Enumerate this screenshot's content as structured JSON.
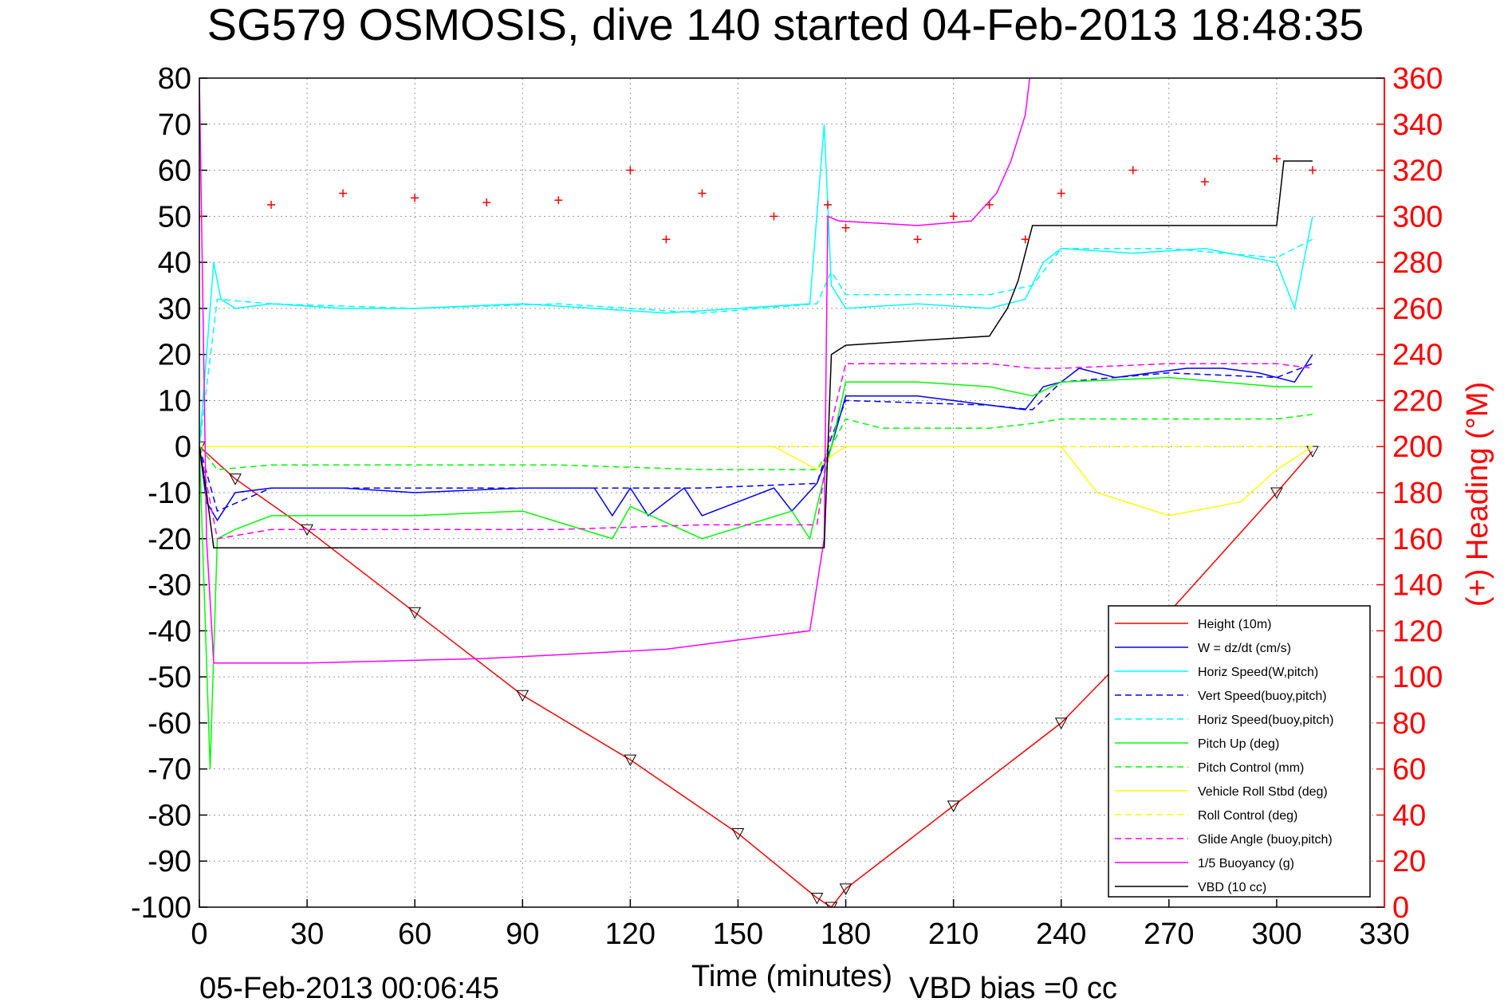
{
  "chart_data": {
    "type": "line",
    "title": "SG579 OSMOSIS, dive 140 started 04-Feb-2013 18:48:35",
    "xlabel": "Time (minutes)",
    "ylabel": "",
    "y2label": "(+) Heading (°M)",
    "footer_date": "05-Feb-2013 00:06:45",
    "footer_vbd": "VBD bias =0 cc",
    "xlim": [
      0,
      330
    ],
    "ylim": [
      -100,
      80
    ],
    "y2lim": [
      0,
      360
    ],
    "grid": true,
    "legend_position": "bottom-right",
    "xticks": [
      "0",
      "30",
      "60",
      "90",
      "120",
      "150",
      "180",
      "210",
      "240",
      "270",
      "300",
      "330"
    ],
    "yticks": [
      "80",
      "70",
      "60",
      "50",
      "40",
      "30",
      "20",
      "10",
      "0",
      "-10",
      "-20",
      "-30",
      "-40",
      "-50",
      "-60",
      "-70",
      "-80",
      "-90",
      "-100"
    ],
    "y2ticks": [
      "360",
      "340",
      "320",
      "300",
      "280",
      "260",
      "240",
      "220",
      "200",
      "180",
      "160",
      "140",
      "120",
      "100",
      "80",
      "60",
      "40",
      "20",
      "0"
    ],
    "y2_color": "#ff0000",
    "series": [
      {
        "name": "Height (10m)",
        "color": "#ff0000",
        "style": "solid",
        "x": [
          0,
          10,
          30,
          60,
          90,
          120,
          150,
          172,
          176,
          180,
          210,
          240,
          270,
          300,
          310
        ],
        "y": [
          0,
          -7,
          -18,
          -36,
          -54,
          -68,
          -84,
          -98,
          -100,
          -96,
          -78,
          -60,
          -36,
          -10,
          -1
        ]
      },
      {
        "name": "W = dz/dt (cm/s)",
        "color": "#0000ff",
        "style": "solid",
        "x": [
          0,
          2,
          5,
          10,
          20,
          40,
          60,
          90,
          110,
          115,
          120,
          125,
          135,
          140,
          160,
          165,
          172,
          176,
          180,
          200,
          220,
          230,
          235,
          240,
          245,
          255,
          265,
          275,
          285,
          295,
          305,
          310
        ],
        "y": [
          0,
          -12,
          -16,
          -10,
          -9,
          -9,
          -10,
          -9,
          -9,
          -15,
          -9,
          -15,
          -9,
          -15,
          -9,
          -14,
          -8,
          0,
          11,
          11,
          9,
          8,
          13,
          14,
          17,
          15,
          16,
          17,
          17,
          16,
          14,
          20
        ]
      },
      {
        "name": "Horiz Speed(W,pitch)",
        "color": "#00ffff",
        "style": "solid",
        "x": [
          0,
          2,
          4,
          6,
          10,
          20,
          40,
          60,
          90,
          110,
          130,
          150,
          170,
          174,
          176,
          180,
          200,
          220,
          230,
          235,
          240,
          260,
          280,
          300,
          305,
          310
        ],
        "y": [
          0,
          20,
          40,
          32,
          30,
          31,
          30,
          30,
          31,
          30,
          29,
          30,
          31,
          70,
          35,
          30,
          31,
          30,
          32,
          40,
          43,
          42,
          43,
          40,
          30,
          50
        ]
      },
      {
        "name": "Vert Speed(buoy,pitch)",
        "color": "#0000ff",
        "style": "dashed",
        "x": [
          0,
          5,
          20,
          60,
          100,
          140,
          172,
          176,
          180,
          220,
          232,
          240,
          270,
          300,
          310
        ],
        "y": [
          0,
          -14,
          -9,
          -9,
          -9,
          -9,
          -8,
          2,
          10,
          9,
          8,
          14,
          16,
          15,
          18
        ]
      },
      {
        "name": "Horiz Speed(buoy,pitch)",
        "color": "#00ffff",
        "style": "dashed",
        "x": [
          0,
          5,
          20,
          60,
          100,
          140,
          172,
          176,
          180,
          220,
          232,
          240,
          270,
          300,
          310
        ],
        "y": [
          0,
          32,
          31,
          30,
          31,
          29,
          31,
          38,
          33,
          33,
          35,
          43,
          43,
          41,
          45
        ]
      },
      {
        "name": "Pitch Up (deg)",
        "color": "#00ff00",
        "style": "solid",
        "x": [
          0,
          3,
          5,
          10,
          20,
          40,
          60,
          90,
          115,
          120,
          140,
          165,
          170,
          172,
          176,
          180,
          200,
          220,
          232,
          240,
          270,
          300,
          310
        ],
        "y": [
          0,
          -70,
          -20,
          -18,
          -15,
          -15,
          -15,
          -14,
          -20,
          -13,
          -20,
          -14,
          -20,
          -13,
          0,
          14,
          14,
          13,
          11,
          14,
          15,
          13,
          13
        ]
      },
      {
        "name": "Pitch Control (mm)",
        "color": "#00ff00",
        "style": "dashed",
        "x": [
          0,
          5,
          20,
          60,
          100,
          140,
          172,
          176,
          180,
          190,
          220,
          232,
          240,
          270,
          300,
          310
        ],
        "y": [
          0,
          -5,
          -4,
          -4,
          -4,
          -5,
          -5,
          0,
          6,
          4,
          4,
          5,
          6,
          6,
          6,
          7
        ]
      },
      {
        "name": "Vehicle Roll Stbd (deg)",
        "color": "#ffff00",
        "style": "solid",
        "x": [
          0,
          5,
          20,
          60,
          100,
          140,
          160,
          172,
          176,
          180,
          200,
          220,
          240,
          250,
          270,
          290,
          300,
          310
        ],
        "y": [
          0,
          0,
          0,
          0,
          0,
          0,
          0,
          -5,
          -2,
          0,
          0,
          0,
          0,
          -10,
          -15,
          -12,
          -5,
          0
        ]
      },
      {
        "name": "Roll Control (deg)",
        "color": "#ffff00",
        "style": "dashed",
        "x": [
          0,
          20,
          60,
          100,
          140,
          172,
          176,
          180,
          220,
          240,
          270,
          300,
          310
        ],
        "y": [
          0,
          0,
          0,
          0,
          0,
          0,
          0,
          0,
          0,
          0,
          0,
          0,
          0
        ]
      },
      {
        "name": "Glide Angle (buoy,pitch)",
        "color": "#ff00ff",
        "style": "dashed",
        "x": [
          0,
          5,
          20,
          60,
          100,
          140,
          172,
          176,
          180,
          220,
          232,
          240,
          270,
          300,
          310
        ],
        "y": [
          0,
          -20,
          -18,
          -18,
          -18,
          -17,
          -17,
          5,
          18,
          18,
          17,
          17,
          18,
          18,
          17
        ]
      },
      {
        "name": "1/5 Buoyancy (g)",
        "color": "#ff00ff",
        "style": "solid",
        "x": [
          0,
          2,
          4,
          6,
          30,
          80,
          130,
          170,
          174,
          175,
          178,
          200,
          215,
          222,
          226,
          230,
          232
        ],
        "y": [
          80,
          -20,
          -47,
          -47,
          -47,
          -46,
          -44,
          -40,
          -20,
          50,
          49,
          48,
          49,
          55,
          62,
          72,
          85
        ]
      },
      {
        "name": "VBD (10 cc)",
        "color": "#000000",
        "style": "solid",
        "x": [
          0,
          2,
          4,
          172,
          174,
          176,
          180,
          200,
          220,
          225,
          228,
          232,
          235,
          300,
          302,
          310
        ],
        "y": [
          0,
          -10,
          -22,
          -22,
          -22,
          20,
          22,
          23,
          24,
          30,
          36,
          48,
          48,
          48,
          62,
          62
        ]
      },
      {
        "name": "Heading",
        "color": "#ff0000",
        "style": "markers",
        "axis": "right",
        "x": [
          0,
          20,
          40,
          60,
          80,
          100,
          120,
          130,
          140,
          160,
          175,
          180,
          200,
          210,
          220,
          230,
          240,
          260,
          280,
          300,
          310
        ],
        "y": [
          300,
          305,
          310,
          308,
          306,
          307,
          320,
          290,
          310,
          300,
          305,
          295,
          290,
          300,
          305,
          290,
          310,
          320,
          315,
          325,
          320
        ]
      }
    ]
  }
}
